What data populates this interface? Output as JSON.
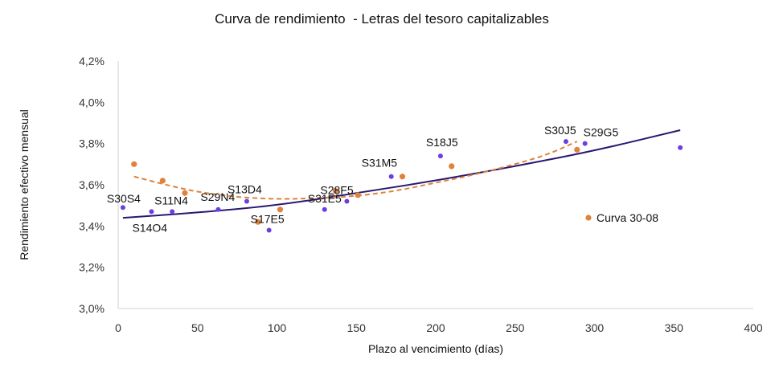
{
  "chart_data": {
    "type": "scatter",
    "title": "Curva de rendimiento  - Letras del tesoro capitalizables",
    "xlabel": "Plazo al vencimiento (días)",
    "ylabel": "Rendimiento efectivo mensual",
    "xlim": [
      0,
      400
    ],
    "ylim": [
      3.0,
      4.2
    ],
    "x_ticks": [
      0,
      50,
      100,
      150,
      200,
      250,
      300,
      350,
      400
    ],
    "y_ticks": [
      3.0,
      3.2,
      3.4,
      3.6,
      3.8,
      4.0,
      4.2
    ],
    "y_tick_labels": [
      "3,0%",
      "3,2%",
      "3,4%",
      "3,6%",
      "3,8%",
      "4,0%",
      "4,2%"
    ],
    "grid": false,
    "legend": "right",
    "colors": {
      "current": "#6a3fe0",
      "previous": "#e0823d",
      "trend_current": "#2a1870",
      "trend_previous": "#e0823d"
    },
    "series": [
      {
        "role": "current",
        "points": [
          {
            "x": 3,
            "y": 3.49,
            "label": "S30S4"
          },
          {
            "x": 21,
            "y": 3.47,
            "label": "S14O4"
          },
          {
            "x": 34,
            "y": 3.47,
            "label": "S11N4"
          },
          {
            "x": 63,
            "y": 3.48,
            "label": "S29N4"
          },
          {
            "x": 81,
            "y": 3.52,
            "label": "S13D4"
          },
          {
            "x": 95,
            "y": 3.38,
            "label": "S17E5"
          },
          {
            "x": 130,
            "y": 3.48,
            "label": "S31E5"
          },
          {
            "x": 144,
            "y": 3.52,
            "label": "S28F5"
          },
          {
            "x": 172,
            "y": 3.64,
            "label": "S31M5"
          },
          {
            "x": 203,
            "y": 3.74,
            "label": "S18J5"
          },
          {
            "x": 282,
            "y": 3.81,
            "label": "S30J5"
          },
          {
            "x": 294,
            "y": 3.8,
            "label": "S29G5"
          },
          {
            "x": 354,
            "y": 3.78,
            "label": ""
          }
        ]
      },
      {
        "role": "previous",
        "name": "Curva 30-08",
        "points": [
          {
            "x": 10,
            "y": 3.7
          },
          {
            "x": 28,
            "y": 3.62
          },
          {
            "x": 42,
            "y": 3.56
          },
          {
            "x": 88,
            "y": 3.42
          },
          {
            "x": 102,
            "y": 3.48
          },
          {
            "x": 137,
            "y": 3.57
          },
          {
            "x": 151,
            "y": 3.55
          },
          {
            "x": 179,
            "y": 3.64
          },
          {
            "x": 210,
            "y": 3.69
          },
          {
            "x": 289,
            "y": 3.77
          }
        ]
      }
    ],
    "trendlines": [
      {
        "role": "current",
        "style": "solid",
        "points": [
          [
            3,
            3.44
          ],
          [
            50,
            3.465
          ],
          [
            100,
            3.5
          ],
          [
            150,
            3.56
          ],
          [
            200,
            3.62
          ],
          [
            250,
            3.69
          ],
          [
            300,
            3.765
          ],
          [
            354,
            3.865
          ]
        ]
      },
      {
        "role": "previous",
        "style": "dashed",
        "points": [
          [
            10,
            3.64
          ],
          [
            30,
            3.6
          ],
          [
            50,
            3.565
          ],
          [
            75,
            3.54
          ],
          [
            100,
            3.53
          ],
          [
            125,
            3.535
          ],
          [
            150,
            3.545
          ],
          [
            175,
            3.57
          ],
          [
            200,
            3.61
          ],
          [
            225,
            3.65
          ],
          [
            250,
            3.7
          ],
          [
            270,
            3.745
          ],
          [
            289,
            3.81
          ]
        ]
      }
    ]
  }
}
